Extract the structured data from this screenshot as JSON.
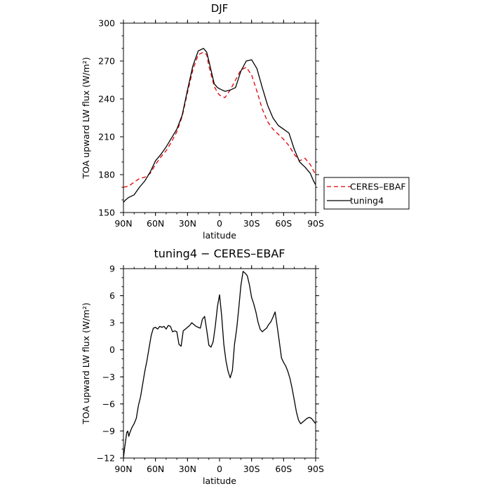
{
  "chart_data": [
    {
      "type": "line",
      "title": "DJF",
      "xlabel": "latitude",
      "ylabel": "TOA upward LW flux (W/m²)",
      "ylim": [
        150,
        300
      ],
      "yticks": [
        150,
        180,
        210,
        240,
        270,
        300
      ],
      "xlim": [
        90,
        -90
      ],
      "xticks": [
        90,
        60,
        30,
        0,
        -30,
        -60,
        -90
      ],
      "xtick_labels": [
        "90N",
        "60N",
        "30N",
        "0",
        "30S",
        "60S",
        "90S"
      ],
      "grid": false,
      "legend_position": "right",
      "series": [
        {
          "name": "CERES–EBAF",
          "color": "#e00000",
          "dash": "dashed",
          "x": [
            90,
            85,
            80,
            75,
            70,
            65,
            60,
            55,
            50,
            45,
            40,
            35,
            30,
            25,
            20,
            15,
            12,
            10,
            5,
            2,
            0,
            -5,
            -10,
            -15,
            -20,
            -25,
            -30,
            -35,
            -40,
            -45,
            -50,
            -55,
            -60,
            -65,
            -70,
            -75,
            -80,
            -85,
            -88,
            -90
          ],
          "y": [
            170,
            171,
            174,
            177,
            178,
            181,
            188,
            194,
            199,
            206,
            214,
            226,
            245,
            263,
            275,
            277,
            275,
            266,
            250,
            245,
            243,
            241,
            247,
            255,
            263,
            265,
            259,
            246,
            232,
            222,
            216,
            212,
            208,
            203,
            196,
            191,
            193,
            188,
            183,
            180
          ]
        },
        {
          "name": "tuning4",
          "color": "#000000",
          "dash": "solid",
          "x": [
            90,
            88,
            85,
            80,
            75,
            70,
            65,
            60,
            55,
            50,
            45,
            40,
            35,
            30,
            25,
            20,
            15,
            12,
            10,
            5,
            2,
            0,
            -5,
            -10,
            -15,
            -20,
            -25,
            -30,
            -35,
            -40,
            -45,
            -50,
            -55,
            -60,
            -65,
            -70,
            -75,
            -80,
            -85,
            -88,
            -90
          ],
          "y": [
            158,
            160,
            162,
            164,
            170,
            175,
            182,
            191,
            196,
            202,
            209,
            216,
            227,
            247,
            266,
            278,
            280,
            277,
            270,
            252,
            249,
            248,
            246,
            247,
            249,
            262,
            270,
            271,
            264,
            249,
            235,
            225,
            219,
            216,
            213,
            200,
            190,
            186,
            181,
            175,
            172
          ]
        }
      ]
    },
    {
      "type": "line",
      "title": "tuning4 − CERES–EBAF",
      "xlabel": "latitude",
      "ylabel": "TOA upward LW flux (W/m²)",
      "ylim": [
        -12,
        9
      ],
      "yticks": [
        -12,
        -9,
        -6,
        -3,
        0,
        3,
        6,
        9
      ],
      "xlim": [
        90,
        -90
      ],
      "xticks": [
        90,
        60,
        30,
        0,
        -30,
        -60,
        -90
      ],
      "xtick_labels": [
        "90N",
        "60N",
        "30N",
        "0",
        "30S",
        "60S",
        "90S"
      ],
      "grid": false,
      "series": [
        {
          "name": "tuning4 − CERES–EBAF",
          "color": "#000000",
          "dash": "solid",
          "x": [
            90,
            89,
            87,
            86,
            85,
            84,
            82,
            80,
            78,
            76,
            74,
            72,
            70,
            68,
            66,
            64,
            62,
            60,
            58,
            56,
            54,
            52,
            50,
            48,
            46,
            44,
            42,
            40,
            38,
            36,
            34,
            32,
            30,
            28,
            26,
            24,
            22,
            20,
            18,
            16,
            14,
            12,
            10,
            8,
            6,
            4,
            2,
            0,
            -2,
            -4,
            -6,
            -8,
            -10,
            -12,
            -14,
            -16,
            -18,
            -20,
            -22,
            -24,
            -26,
            -28,
            -30,
            -32,
            -34,
            -36,
            -38,
            -40,
            -42,
            -44,
            -46,
            -48,
            -50,
            -52,
            -54,
            -56,
            -58,
            -60,
            -62,
            -64,
            -66,
            -68,
            -70,
            -72,
            -74,
            -76,
            -78,
            -80,
            -82,
            -84,
            -86,
            -88,
            -90
          ],
          "y": [
            -12,
            -11,
            -9.2,
            -9,
            -9.6,
            -9.2,
            -8.6,
            -8.2,
            -7.6,
            -6.2,
            -5.2,
            -3.8,
            -2.4,
            -1.2,
            0.2,
            1.6,
            2.4,
            2.5,
            2.3,
            2.6,
            2.5,
            2.6,
            2.3,
            2.7,
            2.6,
            2,
            2.1,
            2,
            0.6,
            0.4,
            2.1,
            2.3,
            2.5,
            2.7,
            3,
            2.8,
            2.6,
            2.5,
            2.4,
            3.4,
            3.7,
            2.2,
            0.5,
            0.3,
            0.9,
            2.6,
            4.8,
            6.1,
            3.8,
            0.6,
            -1.2,
            -2.4,
            -3.1,
            -2.3,
            0.6,
            2.3,
            4.6,
            7.1,
            8.7,
            8.5,
            8.2,
            7.2,
            5.8,
            5.1,
            4.2,
            3.1,
            2.3,
            2,
            2.2,
            2.4,
            2.8,
            3.1,
            3.6,
            4.2,
            2.6,
            0.9,
            -0.9,
            -1.4,
            -1.8,
            -2.4,
            -3.2,
            -4.3,
            -5.6,
            -6.9,
            -7.8,
            -8.2,
            -8.0,
            -7.8,
            -7.6,
            -7.5,
            -7.6,
            -7.9,
            -8.2
          ]
        }
      ]
    }
  ]
}
